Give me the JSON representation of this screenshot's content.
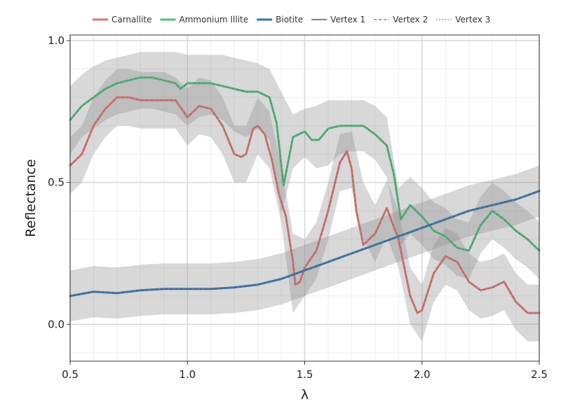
{
  "chart_data": {
    "type": "line",
    "title": "",
    "xlabel": "λ",
    "ylabel": "Reflectance",
    "xlim": [
      0.5,
      2.5
    ],
    "ylim": [
      -0.13,
      1.02
    ],
    "x_ticks": [
      0.5,
      1.0,
      1.5,
      2.0,
      2.5
    ],
    "x_tick_labels": [
      "0.5",
      "1.0",
      "1.5",
      "2.0",
      "2.5"
    ],
    "y_ticks": [
      0.0,
      0.5,
      1.0
    ],
    "y_tick_labels": [
      "0.0",
      "0.5",
      "1.0"
    ],
    "grid": true,
    "legend_position": "top",
    "legend": [
      {
        "label": "Carnallite",
        "color": "#e07070",
        "style": "solid",
        "width": 3
      },
      {
        "label": "Ammonium Illite",
        "color": "#4cc07a",
        "style": "solid",
        "width": 3
      },
      {
        "label": "Biotite",
        "color": "#2f78b4",
        "style": "solid",
        "width": 3
      },
      {
        "label": "Vertex 1",
        "color": "#808080",
        "style": "solid",
        "width": 2
      },
      {
        "label": "Vertex 2",
        "color": "#808080",
        "style": "dashed",
        "width": 1.6
      },
      {
        "label": "Vertex 3",
        "color": "#808080",
        "style": "dotted",
        "width": 1.6
      }
    ],
    "series": [
      {
        "name": "Carnallite",
        "color": "#d77272",
        "x": [
          0.5,
          0.55,
          0.6,
          0.65,
          0.7,
          0.75,
          0.8,
          0.85,
          0.9,
          0.95,
          1.0,
          1.05,
          1.1,
          1.15,
          1.2,
          1.23,
          1.25,
          1.28,
          1.3,
          1.33,
          1.36,
          1.39,
          1.42,
          1.45,
          1.46,
          1.48,
          1.5,
          1.55,
          1.6,
          1.65,
          1.68,
          1.7,
          1.72,
          1.75,
          1.8,
          1.85,
          1.9,
          1.95,
          1.98,
          2.0,
          2.05,
          2.1,
          2.15,
          2.2,
          2.25,
          2.3,
          2.35,
          2.4,
          2.45,
          2.5
        ],
        "y": [
          0.56,
          0.6,
          0.7,
          0.76,
          0.8,
          0.8,
          0.79,
          0.79,
          0.79,
          0.79,
          0.73,
          0.77,
          0.76,
          0.7,
          0.6,
          0.59,
          0.6,
          0.69,
          0.7,
          0.67,
          0.58,
          0.46,
          0.38,
          0.22,
          0.14,
          0.15,
          0.2,
          0.26,
          0.4,
          0.57,
          0.61,
          0.55,
          0.4,
          0.28,
          0.32,
          0.41,
          0.3,
          0.1,
          0.04,
          0.05,
          0.18,
          0.24,
          0.22,
          0.15,
          0.12,
          0.13,
          0.15,
          0.08,
          0.04,
          0.04
        ]
      },
      {
        "name": "Ammonium Illite",
        "color": "#4cb57c",
        "x": [
          0.5,
          0.55,
          0.6,
          0.65,
          0.7,
          0.75,
          0.8,
          0.85,
          0.9,
          0.95,
          0.97,
          1.0,
          1.05,
          1.1,
          1.15,
          1.2,
          1.25,
          1.3,
          1.35,
          1.38,
          1.41,
          1.45,
          1.5,
          1.53,
          1.56,
          1.6,
          1.65,
          1.7,
          1.75,
          1.8,
          1.85,
          1.88,
          1.91,
          1.95,
          2.0,
          2.05,
          2.1,
          2.15,
          2.2,
          2.25,
          2.3,
          2.35,
          2.4,
          2.45,
          2.5
        ],
        "y": [
          0.72,
          0.77,
          0.8,
          0.83,
          0.85,
          0.86,
          0.87,
          0.87,
          0.86,
          0.85,
          0.83,
          0.85,
          0.85,
          0.85,
          0.84,
          0.83,
          0.82,
          0.82,
          0.8,
          0.71,
          0.49,
          0.66,
          0.68,
          0.65,
          0.65,
          0.69,
          0.7,
          0.7,
          0.7,
          0.67,
          0.63,
          0.53,
          0.37,
          0.42,
          0.38,
          0.33,
          0.31,
          0.27,
          0.26,
          0.35,
          0.4,
          0.37,
          0.33,
          0.3,
          0.26
        ]
      },
      {
        "name": "Biotite",
        "color": "#2f6fa7",
        "x": [
          0.5,
          0.6,
          0.7,
          0.8,
          0.9,
          1.0,
          1.1,
          1.2,
          1.3,
          1.4,
          1.5,
          1.6,
          1.7,
          1.8,
          1.9,
          2.0,
          2.1,
          2.2,
          2.3,
          2.4,
          2.5
        ],
        "y": [
          0.1,
          0.115,
          0.11,
          0.12,
          0.125,
          0.125,
          0.125,
          0.13,
          0.14,
          0.16,
          0.19,
          0.22,
          0.25,
          0.28,
          0.31,
          0.34,
          0.37,
          0.4,
          0.42,
          0.44,
          0.47
        ]
      }
    ],
    "bands": [
      {
        "x": [
          0.5,
          0.55,
          0.6,
          0.65,
          0.7,
          0.75,
          0.8,
          0.85,
          0.9,
          0.95,
          1.0,
          1.05,
          1.1,
          1.15,
          1.2,
          1.25,
          1.3,
          1.35,
          1.4,
          1.45,
          1.5,
          1.55,
          1.6,
          1.65,
          1.7,
          1.75,
          1.8,
          1.85,
          1.9,
          1.95,
          2.0,
          2.05,
          2.1,
          2.15,
          2.2,
          2.25,
          2.3,
          2.35,
          2.4,
          2.45,
          2.5
        ],
        "upper": [
          0.84,
          0.88,
          0.91,
          0.93,
          0.94,
          0.95,
          0.96,
          0.96,
          0.96,
          0.96,
          0.95,
          0.95,
          0.95,
          0.95,
          0.94,
          0.93,
          0.92,
          0.9,
          0.82,
          0.74,
          0.76,
          0.77,
          0.79,
          0.79,
          0.79,
          0.79,
          0.77,
          0.73,
          0.48,
          0.52,
          0.48,
          0.43,
          0.41,
          0.37,
          0.36,
          0.45,
          0.5,
          0.47,
          0.43,
          0.4,
          0.36
        ],
        "lower": [
          0.6,
          0.66,
          0.69,
          0.72,
          0.74,
          0.75,
          0.76,
          0.76,
          0.75,
          0.74,
          0.7,
          0.73,
          0.74,
          0.72,
          0.68,
          0.66,
          0.69,
          0.65,
          0.39,
          0.55,
          0.59,
          0.55,
          0.56,
          0.6,
          0.61,
          0.61,
          0.58,
          0.52,
          0.27,
          0.32,
          0.28,
          0.23,
          0.21,
          0.17,
          0.16,
          0.25,
          0.3,
          0.27,
          0.23,
          0.2,
          0.16
        ]
      },
      {
        "x": [
          0.5,
          0.55,
          0.6,
          0.65,
          0.7,
          0.75,
          0.8,
          0.85,
          0.9,
          0.95,
          1.0,
          1.05,
          1.1,
          1.15,
          1.2,
          1.25,
          1.3,
          1.35,
          1.4,
          1.45,
          1.5,
          1.55,
          1.6,
          1.65,
          1.7,
          1.75,
          1.8,
          1.85,
          1.9,
          1.95,
          2.0,
          2.05,
          2.1,
          2.15,
          2.2,
          2.25,
          2.3,
          2.35,
          2.4,
          2.45,
          2.5
        ],
        "upper": [
          0.66,
          0.7,
          0.8,
          0.86,
          0.9,
          0.9,
          0.89,
          0.89,
          0.89,
          0.87,
          0.83,
          0.87,
          0.86,
          0.8,
          0.7,
          0.7,
          0.8,
          0.75,
          0.56,
          0.32,
          0.3,
          0.36,
          0.5,
          0.67,
          0.68,
          0.5,
          0.42,
          0.51,
          0.4,
          0.2,
          0.14,
          0.28,
          0.34,
          0.32,
          0.25,
          0.22,
          0.23,
          0.25,
          0.18,
          0.14,
          0.14
        ],
        "lower": [
          0.46,
          0.5,
          0.6,
          0.66,
          0.7,
          0.7,
          0.69,
          0.69,
          0.69,
          0.69,
          0.63,
          0.67,
          0.66,
          0.6,
          0.5,
          0.5,
          0.6,
          0.55,
          0.36,
          0.04,
          0.1,
          0.16,
          0.3,
          0.47,
          0.48,
          0.3,
          0.22,
          0.31,
          0.2,
          0.0,
          -0.06,
          0.08,
          0.14,
          0.12,
          0.05,
          0.02,
          0.03,
          0.05,
          -0.02,
          -0.06,
          -0.06
        ]
      },
      {
        "x": [
          0.5,
          0.6,
          0.7,
          0.8,
          0.9,
          1.0,
          1.1,
          1.2,
          1.3,
          1.4,
          1.5,
          1.6,
          1.7,
          1.8,
          1.9,
          2.0,
          2.1,
          2.2,
          2.3,
          2.4,
          2.5
        ],
        "upper": [
          0.19,
          0.205,
          0.2,
          0.21,
          0.215,
          0.215,
          0.215,
          0.22,
          0.23,
          0.25,
          0.28,
          0.31,
          0.34,
          0.37,
          0.4,
          0.43,
          0.46,
          0.49,
          0.51,
          0.53,
          0.56
        ],
        "lower": [
          0.01,
          0.025,
          0.02,
          0.03,
          0.035,
          0.035,
          0.035,
          0.04,
          0.05,
          0.07,
          0.1,
          0.13,
          0.16,
          0.19,
          0.22,
          0.25,
          0.28,
          0.31,
          0.33,
          0.35,
          0.38
        ]
      }
    ]
  }
}
